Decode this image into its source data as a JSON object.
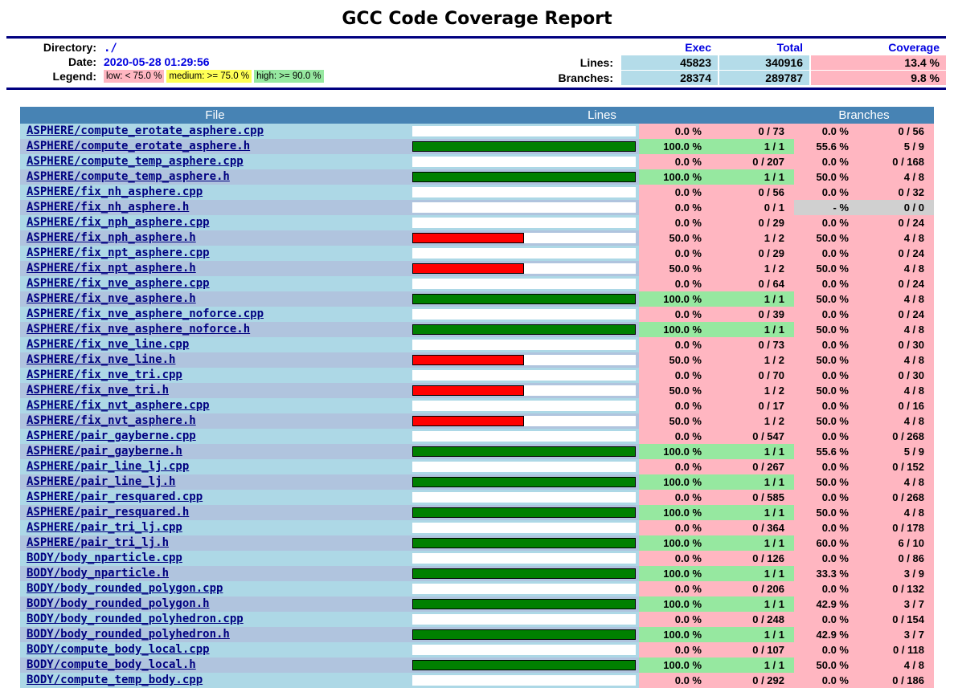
{
  "title": "GCC Code Coverage Report",
  "colors": {
    "low": "#ffb6c1",
    "medium": "#ffff55",
    "high": "#96e8a0",
    "none": "#d0d0d0",
    "row_odd": "#add8e6",
    "row_even": "#b0c4de",
    "table_header": "#4783b4",
    "summary_cell": "#b4dce9",
    "link_file": "#000080",
    "link_blue": "#0000e0",
    "rule": "#000080",
    "bar_high": "#008000",
    "bar_low": "#ff0000"
  },
  "summary": {
    "directory_label": "Directory:",
    "directory": "./",
    "date_label": "Date:",
    "date": "2020-05-28 01:29:56",
    "legend_label": "Legend:",
    "legend": [
      {
        "label": "low: < 75.0 %",
        "level": "low"
      },
      {
        "label": "medium: >= 75.0 %",
        "level": "medium"
      },
      {
        "label": "high: >= 90.0 %",
        "level": "high"
      }
    ],
    "columns": {
      "exec": "Exec",
      "total": "Total",
      "coverage": "Coverage"
    },
    "rows": [
      {
        "label": "Lines:",
        "exec": "45823",
        "total": "340916",
        "coverage": "13.4 %",
        "level": "low"
      },
      {
        "label": "Branches:",
        "exec": "28374",
        "total": "289787",
        "coverage": "9.8 %",
        "level": "low"
      }
    ]
  },
  "table": {
    "headers": {
      "file": "File",
      "lines": "Lines",
      "branches": "Branches"
    },
    "files": [
      {
        "name": "ASPHERE/compute_erotate_asphere.cpp",
        "bar": 0,
        "lines_pct": "0.0 %",
        "lines_frac": "0 / 73",
        "lines_level": "low",
        "br_pct": "0.0 %",
        "br_frac": "0 / 56",
        "br_level": "low"
      },
      {
        "name": "ASPHERE/compute_erotate_asphere.h",
        "bar": 100,
        "lines_pct": "100.0 %",
        "lines_frac": "1 / 1",
        "lines_level": "high",
        "br_pct": "55.6 %",
        "br_frac": "5 / 9",
        "br_level": "low"
      },
      {
        "name": "ASPHERE/compute_temp_asphere.cpp",
        "bar": 0,
        "lines_pct": "0.0 %",
        "lines_frac": "0 / 207",
        "lines_level": "low",
        "br_pct": "0.0 %",
        "br_frac": "0 / 168",
        "br_level": "low"
      },
      {
        "name": "ASPHERE/compute_temp_asphere.h",
        "bar": 100,
        "lines_pct": "100.0 %",
        "lines_frac": "1 / 1",
        "lines_level": "high",
        "br_pct": "50.0 %",
        "br_frac": "4 / 8",
        "br_level": "low"
      },
      {
        "name": "ASPHERE/fix_nh_asphere.cpp",
        "bar": 0,
        "lines_pct": "0.0 %",
        "lines_frac": "0 / 56",
        "lines_level": "low",
        "br_pct": "0.0 %",
        "br_frac": "0 / 32",
        "br_level": "low"
      },
      {
        "name": "ASPHERE/fix_nh_asphere.h",
        "bar": 0,
        "lines_pct": "0.0 %",
        "lines_frac": "0 / 1",
        "lines_level": "low",
        "br_pct": "- %",
        "br_frac": "0 / 0",
        "br_level": "none"
      },
      {
        "name": "ASPHERE/fix_nph_asphere.cpp",
        "bar": 0,
        "lines_pct": "0.0 %",
        "lines_frac": "0 / 29",
        "lines_level": "low",
        "br_pct": "0.0 %",
        "br_frac": "0 / 24",
        "br_level": "low"
      },
      {
        "name": "ASPHERE/fix_nph_asphere.h",
        "bar": 50,
        "lines_pct": "50.0 %",
        "lines_frac": "1 / 2",
        "lines_level": "low",
        "br_pct": "50.0 %",
        "br_frac": "4 / 8",
        "br_level": "low"
      },
      {
        "name": "ASPHERE/fix_npt_asphere.cpp",
        "bar": 0,
        "lines_pct": "0.0 %",
        "lines_frac": "0 / 29",
        "lines_level": "low",
        "br_pct": "0.0 %",
        "br_frac": "0 / 24",
        "br_level": "low"
      },
      {
        "name": "ASPHERE/fix_npt_asphere.h",
        "bar": 50,
        "lines_pct": "50.0 %",
        "lines_frac": "1 / 2",
        "lines_level": "low",
        "br_pct": "50.0 %",
        "br_frac": "4 / 8",
        "br_level": "low"
      },
      {
        "name": "ASPHERE/fix_nve_asphere.cpp",
        "bar": 0,
        "lines_pct": "0.0 %",
        "lines_frac": "0 / 64",
        "lines_level": "low",
        "br_pct": "0.0 %",
        "br_frac": "0 / 24",
        "br_level": "low"
      },
      {
        "name": "ASPHERE/fix_nve_asphere.h",
        "bar": 100,
        "lines_pct": "100.0 %",
        "lines_frac": "1 / 1",
        "lines_level": "high",
        "br_pct": "50.0 %",
        "br_frac": "4 / 8",
        "br_level": "low"
      },
      {
        "name": "ASPHERE/fix_nve_asphere_noforce.cpp",
        "bar": 0,
        "lines_pct": "0.0 %",
        "lines_frac": "0 / 39",
        "lines_level": "low",
        "br_pct": "0.0 %",
        "br_frac": "0 / 24",
        "br_level": "low"
      },
      {
        "name": "ASPHERE/fix_nve_asphere_noforce.h",
        "bar": 100,
        "lines_pct": "100.0 %",
        "lines_frac": "1 / 1",
        "lines_level": "high",
        "br_pct": "50.0 %",
        "br_frac": "4 / 8",
        "br_level": "low"
      },
      {
        "name": "ASPHERE/fix_nve_line.cpp",
        "bar": 0,
        "lines_pct": "0.0 %",
        "lines_frac": "0 / 73",
        "lines_level": "low",
        "br_pct": "0.0 %",
        "br_frac": "0 / 30",
        "br_level": "low"
      },
      {
        "name": "ASPHERE/fix_nve_line.h",
        "bar": 50,
        "lines_pct": "50.0 %",
        "lines_frac": "1 / 2",
        "lines_level": "low",
        "br_pct": "50.0 %",
        "br_frac": "4 / 8",
        "br_level": "low"
      },
      {
        "name": "ASPHERE/fix_nve_tri.cpp",
        "bar": 0,
        "lines_pct": "0.0 %",
        "lines_frac": "0 / 70",
        "lines_level": "low",
        "br_pct": "0.0 %",
        "br_frac": "0 / 30",
        "br_level": "low"
      },
      {
        "name": "ASPHERE/fix_nve_tri.h",
        "bar": 50,
        "lines_pct": "50.0 %",
        "lines_frac": "1 / 2",
        "lines_level": "low",
        "br_pct": "50.0 %",
        "br_frac": "4 / 8",
        "br_level": "low"
      },
      {
        "name": "ASPHERE/fix_nvt_asphere.cpp",
        "bar": 0,
        "lines_pct": "0.0 %",
        "lines_frac": "0 / 17",
        "lines_level": "low",
        "br_pct": "0.0 %",
        "br_frac": "0 / 16",
        "br_level": "low"
      },
      {
        "name": "ASPHERE/fix_nvt_asphere.h",
        "bar": 50,
        "lines_pct": "50.0 %",
        "lines_frac": "1 / 2",
        "lines_level": "low",
        "br_pct": "50.0 %",
        "br_frac": "4 / 8",
        "br_level": "low"
      },
      {
        "name": "ASPHERE/pair_gayberne.cpp",
        "bar": 0,
        "lines_pct": "0.0 %",
        "lines_frac": "0 / 547",
        "lines_level": "low",
        "br_pct": "0.0 %",
        "br_frac": "0 / 268",
        "br_level": "low"
      },
      {
        "name": "ASPHERE/pair_gayberne.h",
        "bar": 100,
        "lines_pct": "100.0 %",
        "lines_frac": "1 / 1",
        "lines_level": "high",
        "br_pct": "55.6 %",
        "br_frac": "5 / 9",
        "br_level": "low"
      },
      {
        "name": "ASPHERE/pair_line_lj.cpp",
        "bar": 0,
        "lines_pct": "0.0 %",
        "lines_frac": "0 / 267",
        "lines_level": "low",
        "br_pct": "0.0 %",
        "br_frac": "0 / 152",
        "br_level": "low"
      },
      {
        "name": "ASPHERE/pair_line_lj.h",
        "bar": 100,
        "lines_pct": "100.0 %",
        "lines_frac": "1 / 1",
        "lines_level": "high",
        "br_pct": "50.0 %",
        "br_frac": "4 / 8",
        "br_level": "low"
      },
      {
        "name": "ASPHERE/pair_resquared.cpp",
        "bar": 0,
        "lines_pct": "0.0 %",
        "lines_frac": "0 / 585",
        "lines_level": "low",
        "br_pct": "0.0 %",
        "br_frac": "0 / 268",
        "br_level": "low"
      },
      {
        "name": "ASPHERE/pair_resquared.h",
        "bar": 100,
        "lines_pct": "100.0 %",
        "lines_frac": "1 / 1",
        "lines_level": "high",
        "br_pct": "50.0 %",
        "br_frac": "4 / 8",
        "br_level": "low"
      },
      {
        "name": "ASPHERE/pair_tri_lj.cpp",
        "bar": 0,
        "lines_pct": "0.0 %",
        "lines_frac": "0 / 364",
        "lines_level": "low",
        "br_pct": "0.0 %",
        "br_frac": "0 / 178",
        "br_level": "low"
      },
      {
        "name": "ASPHERE/pair_tri_lj.h",
        "bar": 100,
        "lines_pct": "100.0 %",
        "lines_frac": "1 / 1",
        "lines_level": "high",
        "br_pct": "60.0 %",
        "br_frac": "6 / 10",
        "br_level": "low"
      },
      {
        "name": "BODY/body_nparticle.cpp",
        "bar": 0,
        "lines_pct": "0.0 %",
        "lines_frac": "0 / 126",
        "lines_level": "low",
        "br_pct": "0.0 %",
        "br_frac": "0 / 86",
        "br_level": "low"
      },
      {
        "name": "BODY/body_nparticle.h",
        "bar": 100,
        "lines_pct": "100.0 %",
        "lines_frac": "1 / 1",
        "lines_level": "high",
        "br_pct": "33.3 %",
        "br_frac": "3 / 9",
        "br_level": "low"
      },
      {
        "name": "BODY/body_rounded_polygon.cpp",
        "bar": 0,
        "lines_pct": "0.0 %",
        "lines_frac": "0 / 206",
        "lines_level": "low",
        "br_pct": "0.0 %",
        "br_frac": "0 / 132",
        "br_level": "low"
      },
      {
        "name": "BODY/body_rounded_polygon.h",
        "bar": 100,
        "lines_pct": "100.0 %",
        "lines_frac": "1 / 1",
        "lines_level": "high",
        "br_pct": "42.9 %",
        "br_frac": "3 / 7",
        "br_level": "low"
      },
      {
        "name": "BODY/body_rounded_polyhedron.cpp",
        "bar": 0,
        "lines_pct": "0.0 %",
        "lines_frac": "0 / 248",
        "lines_level": "low",
        "br_pct": "0.0 %",
        "br_frac": "0 / 154",
        "br_level": "low"
      },
      {
        "name": "BODY/body_rounded_polyhedron.h",
        "bar": 100,
        "lines_pct": "100.0 %",
        "lines_frac": "1 / 1",
        "lines_level": "high",
        "br_pct": "42.9 %",
        "br_frac": "3 / 7",
        "br_level": "low"
      },
      {
        "name": "BODY/compute_body_local.cpp",
        "bar": 0,
        "lines_pct": "0.0 %",
        "lines_frac": "0 / 107",
        "lines_level": "low",
        "br_pct": "0.0 %",
        "br_frac": "0 / 118",
        "br_level": "low"
      },
      {
        "name": "BODY/compute_body_local.h",
        "bar": 100,
        "lines_pct": "100.0 %",
        "lines_frac": "1 / 1",
        "lines_level": "high",
        "br_pct": "50.0 %",
        "br_frac": "4 / 8",
        "br_level": "low"
      },
      {
        "name": "BODY/compute_temp_body.cpp",
        "bar": 0,
        "lines_pct": "0.0 %",
        "lines_frac": "0 / 292",
        "lines_level": "low",
        "br_pct": "0.0 %",
        "br_frac": "0 / 186",
        "br_level": "low"
      }
    ]
  }
}
